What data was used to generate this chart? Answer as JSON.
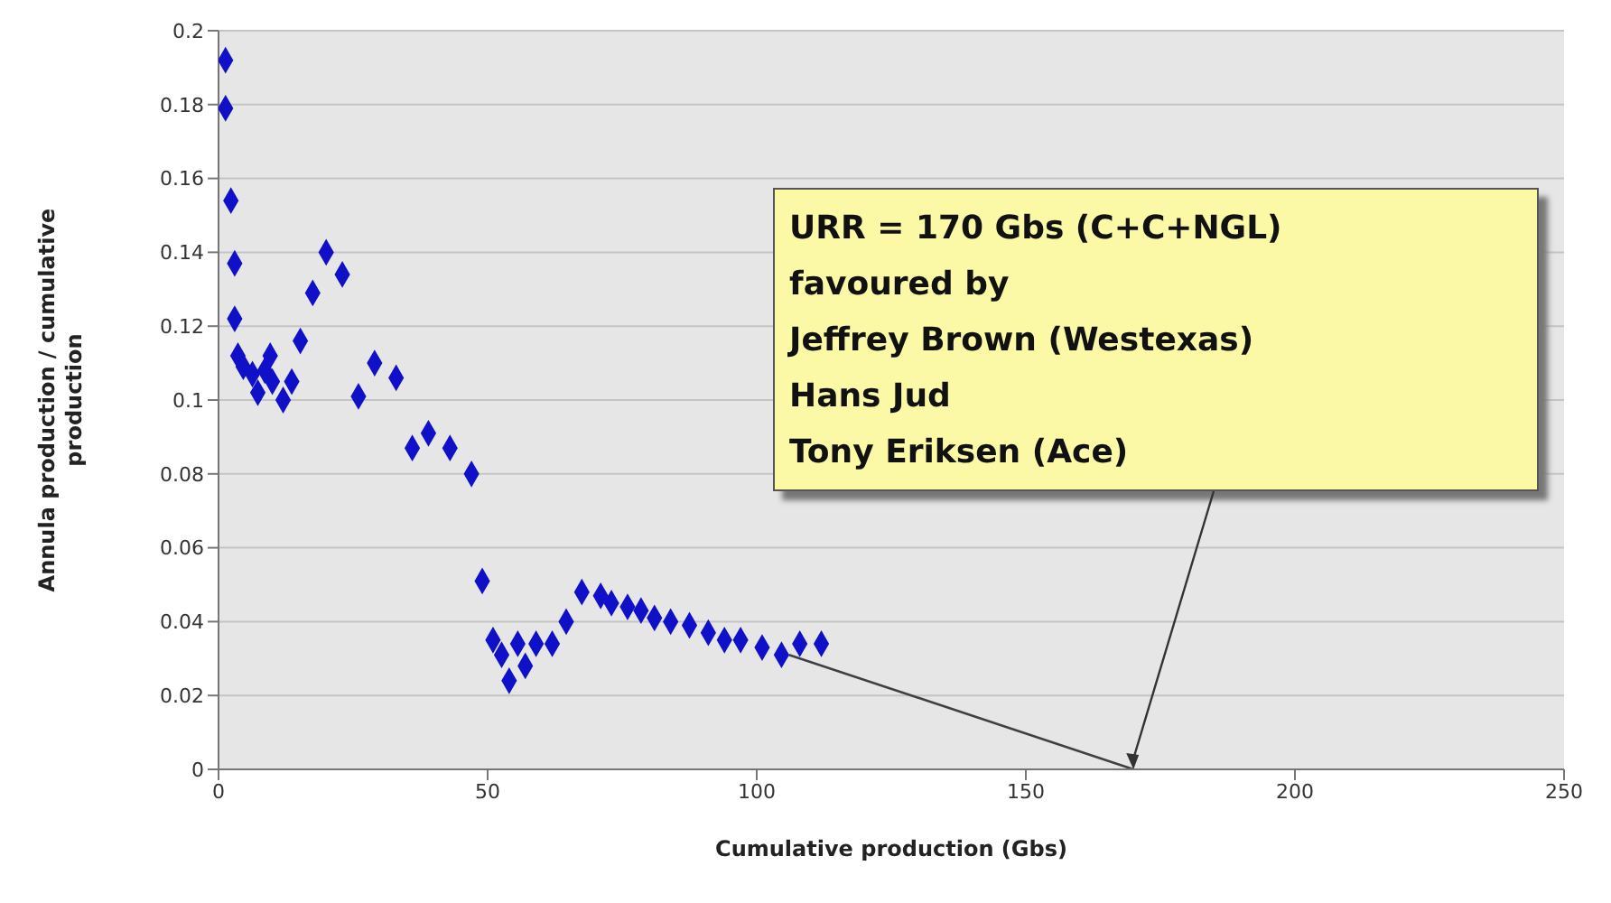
{
  "chart_data": {
    "type": "scatter",
    "xlabel": "Cumulative production (Gbs)",
    "ylabel": "Annula production / cumulative production",
    "xlim": [
      0,
      250
    ],
    "xticks": [
      0,
      50,
      100,
      150,
      200,
      250
    ],
    "ylim": [
      0,
      0.2
    ],
    "yticks": [
      0,
      0.02,
      0.04,
      0.06,
      0.08,
      0.1,
      0.12,
      0.14,
      0.16,
      0.18,
      0.2
    ],
    "grid": "y",
    "marker": "diamond",
    "series": [
      {
        "color": "#1010c8",
        "x": [
          1.3,
          1.3,
          2.3,
          3,
          3,
          3.6,
          4.6,
          6.3,
          7.3,
          8.6,
          9.6,
          10,
          12,
          13.6,
          15.2,
          17.5,
          20,
          23,
          26,
          29,
          33,
          36,
          39,
          43,
          47,
          49,
          51,
          52.6,
          54,
          55.6,
          57,
          59,
          62,
          64.6,
          67.5,
          71,
          73,
          76,
          78.5,
          81,
          84,
          87.5,
          91,
          94,
          97,
          101,
          104.6,
          108,
          112
        ],
        "values": [
          0.192,
          0.179,
          0.154,
          0.137,
          0.122,
          0.112,
          0.109,
          0.107,
          0.102,
          0.108,
          0.112,
          0.105,
          0.1,
          0.105,
          0.116,
          0.129,
          0.14,
          0.134,
          0.101,
          0.11,
          0.106,
          0.087,
          0.091,
          0.087,
          0.08,
          0.051,
          0.035,
          0.031,
          0.024,
          0.034,
          0.028,
          0.034,
          0.034,
          0.04,
          0.048,
          0.047,
          0.045,
          0.044,
          0.043,
          0.041,
          0.04,
          0.039,
          0.037,
          0.035,
          0.035,
          0.033,
          0.031,
          0.034,
          0.034
        ]
      },
      {
        "type": "line",
        "marker": "none",
        "color": "#404040",
        "x": [
          106,
          170
        ],
        "values": [
          0.031,
          0
        ]
      }
    ],
    "annotations": [
      {
        "text": "URR = 170 Gbs (C+C+NGL)\nfavoured by\nJeffrey Brown (Westexas)\nHans Jud\nTony Eriksen (Ace)",
        "x": 170,
        "y": 0
      }
    ]
  }
}
